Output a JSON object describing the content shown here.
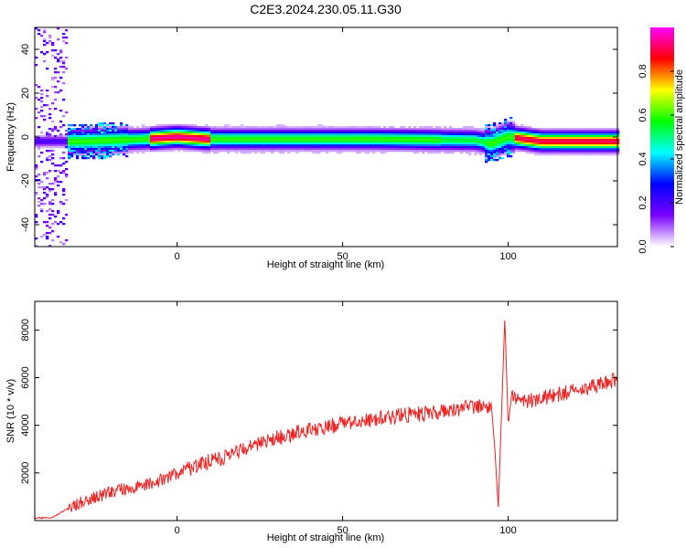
{
  "title": "C2E3.2024.230.05.11.G30",
  "chart_data": [
    {
      "type": "heatmap",
      "xlabel": "Height of straight line (km)",
      "ylabel": "Frequency (Hz)",
      "xlim": [
        -43,
        133
      ],
      "ylim": [
        -50,
        50
      ],
      "xticks": [
        0,
        50,
        100
      ],
      "yticks": [
        -40,
        -20,
        0,
        20,
        40
      ],
      "colorbar": {
        "label": "Normalized spectral amplitude",
        "range": [
          0,
          1
        ],
        "ticks": [
          "0.0",
          "0.2",
          "0.4",
          "0.6",
          "0.8"
        ],
        "colors": [
          "#ffffff",
          "#7a00ff",
          "#0000ff",
          "#00ffff",
          "#00ff00",
          "#ffff00",
          "#ff0000",
          "#ff00ff"
        ]
      },
      "peak_frequency_hz": [
        {
          "x": -38,
          "f": -2
        },
        {
          "x": -30,
          "f": -2
        },
        {
          "x": -20,
          "f": -1.5
        },
        {
          "x": -10,
          "f": -1
        },
        {
          "x": 0,
          "f": 0
        },
        {
          "x": 10,
          "f": -1
        },
        {
          "x": 30,
          "f": -1
        },
        {
          "x": 60,
          "f": -1
        },
        {
          "x": 90,
          "f": -1.5
        },
        {
          "x": 95,
          "f": -3
        },
        {
          "x": 100,
          "f": 0
        },
        {
          "x": 110,
          "f": -2
        },
        {
          "x": 133,
          "f": -2
        }
      ]
    },
    {
      "type": "line",
      "xlabel": "Height of straight line (km)",
      "ylabel": "SNR (10 * v/v)",
      "xlim": [
        -43,
        133
      ],
      "ylim": [
        0,
        9200
      ],
      "xticks": [
        0,
        50,
        100
      ],
      "yticks": [
        2000,
        4000,
        6000,
        8000
      ],
      "color": "#ee2222",
      "series": [
        {
          "x": [
            -43,
            -38,
            -33,
            -30,
            -27,
            -24,
            -20,
            -15,
            -10,
            -5,
            0,
            5,
            10,
            15,
            20,
            25,
            30,
            35,
            40,
            45,
            50,
            55,
            60,
            65,
            70,
            75,
            80,
            85,
            90,
            93,
            95,
            96,
            97,
            98,
            99,
            100,
            101,
            103,
            105,
            110,
            115,
            120,
            125,
            130,
            133
          ],
          "y": [
            100,
            120,
            500,
            700,
            900,
            1000,
            1200,
            1350,
            1450,
            1700,
            2000,
            2250,
            2500,
            2700,
            2950,
            3200,
            3450,
            3650,
            3800,
            3950,
            4050,
            4150,
            4250,
            4350,
            4450,
            4500,
            4600,
            4700,
            4800,
            4900,
            4700,
            3000,
            500,
            4500,
            8500,
            4000,
            5200,
            5100,
            5000,
            5150,
            5300,
            5450,
            5600,
            5800,
            5950
          ]
        }
      ]
    }
  ]
}
